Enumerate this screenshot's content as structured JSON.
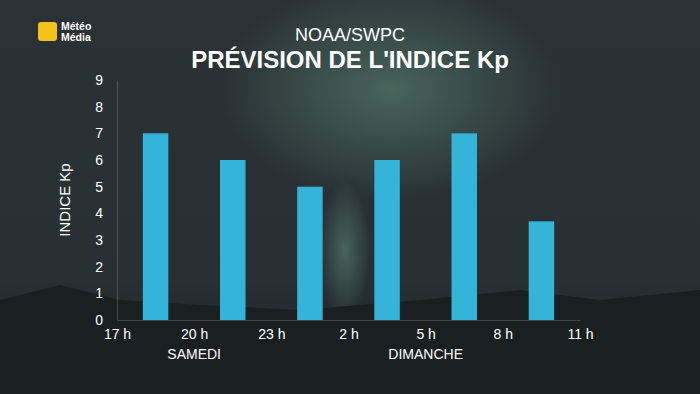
{
  "chart_data": {
    "type": "histogram",
    "logo_text": [
      "Météo",
      "Média"
    ],
    "subtitle": "NOAA/SWPC",
    "title": "PRÉVISION DE L'INDICE Kp",
    "y_label": "INDICE Kp",
    "bins": [
      17,
      20,
      23,
      26,
      29,
      32,
      35
    ],
    "values": [
      7,
      6,
      5,
      6,
      7,
      3.7
    ],
    "color": "#35b4da",
    "xlim": [
      17,
      35
    ],
    "xticks": [
      {
        "value": 17,
        "label": "17 h"
      },
      {
        "value": 20,
        "label": "20 h"
      },
      {
        "value": 23,
        "label": "23 h"
      },
      {
        "value": 26,
        "label": "2 h"
      },
      {
        "value": 29,
        "label": "5 h"
      },
      {
        "value": 32,
        "label": "8 h"
      },
      {
        "value": 35,
        "label": "11 h"
      }
    ],
    "ylim": [
      0,
      9
    ],
    "yticks": [
      0,
      1,
      2,
      3,
      4,
      5,
      6,
      7,
      8,
      9
    ],
    "grid": false,
    "annotations": [
      {
        "text": "SAMEDI",
        "x": 20
      },
      {
        "text": "DIMANCHE",
        "x": 29
      }
    ]
  }
}
